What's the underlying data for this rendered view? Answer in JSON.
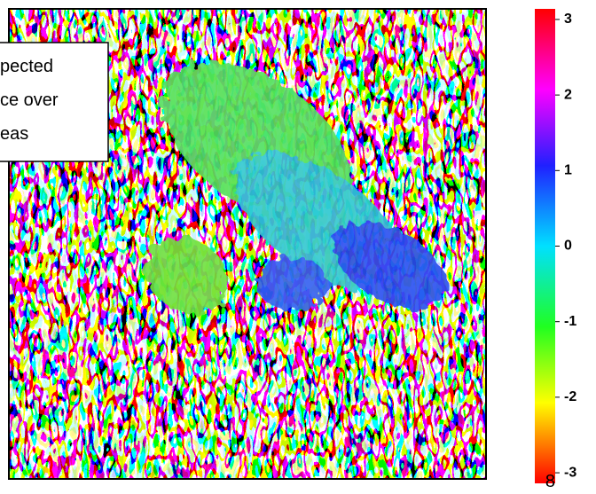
{
  "chart_data": {
    "type": "image-colorbar",
    "annotation": [
      "pected",
      "ce over",
      "eas"
    ],
    "clim": [
      -3.14,
      3.14
    ],
    "cticks": [
      3,
      2,
      1,
      0,
      -1,
      -2,
      -3
    ],
    "page_number": "8"
  }
}
